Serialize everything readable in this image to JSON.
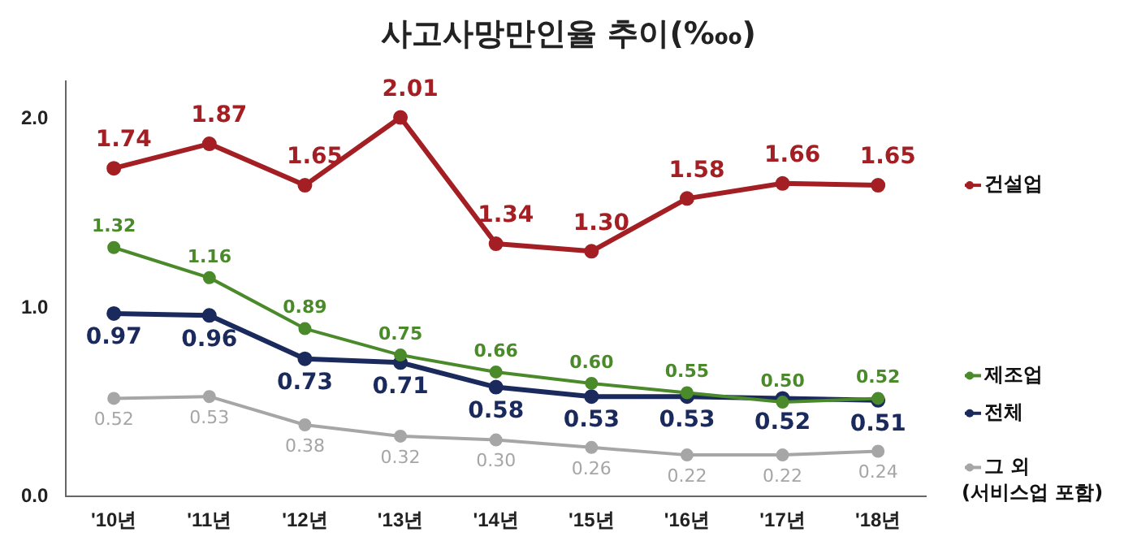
{
  "chart_data": {
    "type": "line",
    "title": "사고사망만인율 추이(‱)",
    "categories": [
      "'10년",
      "'11년",
      "'12년",
      "'13년",
      "'14년",
      "'15년",
      "'16년",
      "'17년",
      "'18년"
    ],
    "series": [
      {
        "name": "건설업",
        "color": "#a31f24",
        "values": [
          1.74,
          1.87,
          1.65,
          2.01,
          1.34,
          1.3,
          1.58,
          1.66,
          1.65
        ],
        "value_labels": [
          "1.74",
          "1.87",
          "1.65",
          "2.01",
          "1.34",
          "1.30",
          "1.58",
          "1.66",
          "1.65"
        ]
      },
      {
        "name": "제조업",
        "color": "#4a8a2a",
        "values": [
          1.32,
          1.16,
          0.89,
          0.75,
          0.66,
          0.6,
          0.55,
          0.5,
          0.52
        ],
        "value_labels": [
          "1.32",
          "1.16",
          "0.89",
          "0.75",
          "0.66",
          "0.60",
          "0.55",
          "0.50",
          "0.52"
        ]
      },
      {
        "name": "전체",
        "color": "#1b2a5c",
        "values": [
          0.97,
          0.96,
          0.73,
          0.71,
          0.58,
          0.53,
          0.53,
          0.52,
          0.51
        ],
        "value_labels": [
          "0.97",
          "0.96",
          "0.73",
          "0.71",
          "0.58",
          "0.53",
          "0.53",
          "0.52",
          "0.51"
        ]
      },
      {
        "name": "그 외 (서비스업 포함)",
        "color": "#a6a6a6",
        "values": [
          0.52,
          0.53,
          0.38,
          0.32,
          0.3,
          0.26,
          0.22,
          0.22,
          0.24
        ],
        "value_labels": [
          "0.52",
          "0.53",
          "0.38",
          "0.32",
          "0.30",
          "0.26",
          "0.22",
          "0.22",
          "0.24"
        ]
      }
    ],
    "ylim": [
      0,
      2.2
    ],
    "yticks": [
      {
        "value": 0,
        "label": "0.0"
      },
      {
        "value": 1,
        "label": "1.0"
      },
      {
        "value": 2,
        "label": "2.0"
      }
    ],
    "grid": false,
    "legend": "right",
    "marker": "circle",
    "line_style": "solid"
  }
}
